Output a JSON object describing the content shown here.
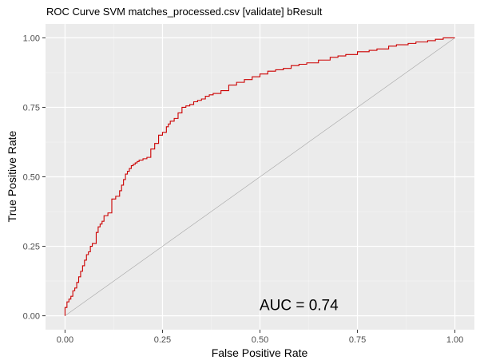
{
  "chart_data": {
    "type": "line",
    "title": "ROC Curve SVM matches_processed.csv [validate] bResult",
    "xlabel": "False Positive Rate",
    "ylabel": "True Positive Rate",
    "xlim": [
      -0.05,
      1.05
    ],
    "ylim": [
      -0.05,
      1.05
    ],
    "xticks": [
      "0.00",
      "0.25",
      "0.50",
      "0.75",
      "1.00"
    ],
    "yticks": [
      "0.00",
      "0.25",
      "0.50",
      "0.75",
      "1.00"
    ],
    "grid": true,
    "background": "#ebebeb",
    "series": [
      {
        "color": "#cc0000",
        "x": [
          0.0,
          0.0,
          0.005,
          0.01,
          0.015,
          0.02,
          0.025,
          0.03,
          0.035,
          0.04,
          0.045,
          0.05,
          0.055,
          0.06,
          0.065,
          0.07,
          0.08,
          0.085,
          0.09,
          0.095,
          0.1,
          0.11,
          0.12,
          0.125,
          0.13,
          0.14,
          0.145,
          0.15,
          0.155,
          0.16,
          0.165,
          0.17,
          0.175,
          0.18,
          0.185,
          0.19,
          0.2,
          0.21,
          0.22,
          0.23,
          0.24,
          0.25,
          0.26,
          0.265,
          0.27,
          0.275,
          0.28,
          0.29,
          0.3,
          0.31,
          0.32,
          0.33,
          0.34,
          0.35,
          0.36,
          0.37,
          0.38,
          0.4,
          0.42,
          0.44,
          0.46,
          0.48,
          0.5,
          0.52,
          0.54,
          0.56,
          0.58,
          0.6,
          0.62,
          0.65,
          0.68,
          0.7,
          0.72,
          0.75,
          0.78,
          0.8,
          0.83,
          0.85,
          0.88,
          0.9,
          0.93,
          0.95,
          0.97,
          1.0
        ],
        "y": [
          0.0,
          0.03,
          0.05,
          0.06,
          0.07,
          0.09,
          0.1,
          0.12,
          0.14,
          0.16,
          0.18,
          0.2,
          0.22,
          0.23,
          0.25,
          0.26,
          0.3,
          0.32,
          0.33,
          0.34,
          0.36,
          0.37,
          0.42,
          0.42,
          0.43,
          0.45,
          0.47,
          0.49,
          0.51,
          0.52,
          0.53,
          0.54,
          0.545,
          0.55,
          0.555,
          0.56,
          0.565,
          0.57,
          0.6,
          0.62,
          0.65,
          0.66,
          0.68,
          0.69,
          0.7,
          0.7,
          0.71,
          0.73,
          0.75,
          0.755,
          0.76,
          0.77,
          0.775,
          0.78,
          0.79,
          0.795,
          0.8,
          0.81,
          0.83,
          0.84,
          0.85,
          0.86,
          0.87,
          0.88,
          0.885,
          0.89,
          0.9,
          0.905,
          0.91,
          0.92,
          0.93,
          0.935,
          0.94,
          0.95,
          0.955,
          0.96,
          0.97,
          0.975,
          0.98,
          0.985,
          0.99,
          0.995,
          1.0,
          1.0
        ]
      }
    ],
    "reference_line": {
      "x": [
        0,
        1
      ],
      "y": [
        0,
        1
      ],
      "color": "#a6a6a6"
    },
    "annotation": {
      "text": "AUC = 0.74",
      "x": 0.6,
      "y": 0.02
    }
  }
}
